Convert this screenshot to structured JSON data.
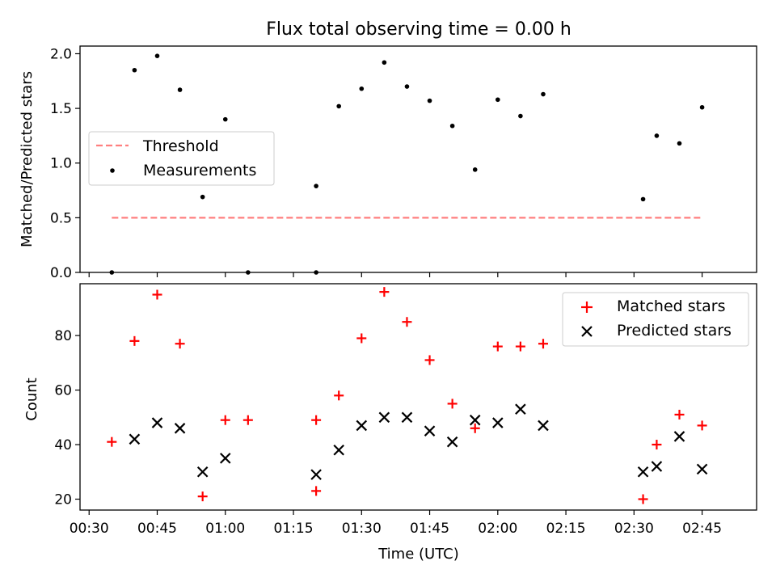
{
  "title": "Flux total observing time = 0.00 h",
  "colors": {
    "threshold": "#ff7f7f",
    "measurement": "#000000",
    "matched": "#ff0000",
    "predicted": "#000000"
  },
  "chart_data": [
    {
      "type": "scatter",
      "ylabel": "Matched/Predicted stars",
      "ylim": [
        0,
        2.07
      ],
      "yticks": [
        "0.0",
        "0.5",
        "1.0",
        "1.5",
        "2.0"
      ],
      "legend_position": "center-left",
      "threshold": {
        "name": "Threshold",
        "value": 0.5,
        "x_range": [
          "00:35",
          "02:45"
        ]
      },
      "series": [
        {
          "name": "Measurements",
          "points": [
            [
              "00:35",
              0.0
            ],
            [
              "00:40",
              1.85
            ],
            [
              "00:45",
              1.98
            ],
            [
              "00:50",
              1.67
            ],
            [
              "00:55",
              0.69
            ],
            [
              "01:00",
              1.4
            ],
            [
              "01:05",
              0.0
            ],
            [
              "01:20",
              0.0
            ],
            [
              "01:20",
              0.79
            ],
            [
              "01:25",
              1.52
            ],
            [
              "01:30",
              1.68
            ],
            [
              "01:35",
              1.92
            ],
            [
              "01:40",
              1.7
            ],
            [
              "01:45",
              1.57
            ],
            [
              "01:50",
              1.34
            ],
            [
              "01:55",
              0.94
            ],
            [
              "02:00",
              1.58
            ],
            [
              "02:05",
              1.43
            ],
            [
              "02:10",
              1.63
            ],
            [
              "02:32",
              0.67
            ],
            [
              "02:35",
              1.25
            ],
            [
              "02:40",
              1.18
            ],
            [
              "02:45",
              1.51
            ]
          ]
        }
      ]
    },
    {
      "type": "scatter",
      "xlabel": "Time (UTC)",
      "ylabel": "Count",
      "ylim": [
        16,
        99
      ],
      "yticks": [
        "20",
        "40",
        "60",
        "80"
      ],
      "xlim": [
        "00:28",
        "02:57"
      ],
      "xticks": [
        "00:30",
        "00:45",
        "01:00",
        "01:15",
        "01:30",
        "01:45",
        "02:00",
        "02:15",
        "02:30",
        "02:45"
      ],
      "legend_position": "top-right",
      "series": [
        {
          "name": "Matched stars",
          "marker": "+",
          "points": [
            [
              "00:35",
              41
            ],
            [
              "00:40",
              78
            ],
            [
              "00:45",
              95
            ],
            [
              "00:50",
              77
            ],
            [
              "00:55",
              21
            ],
            [
              "01:00",
              49
            ],
            [
              "01:05",
              49
            ],
            [
              "01:20",
              49
            ],
            [
              "01:20",
              23
            ],
            [
              "01:25",
              58
            ],
            [
              "01:30",
              79
            ],
            [
              "01:35",
              96
            ],
            [
              "01:40",
              85
            ],
            [
              "01:45",
              71
            ],
            [
              "01:50",
              55
            ],
            [
              "01:55",
              46
            ],
            [
              "02:00",
              76
            ],
            [
              "02:05",
              76
            ],
            [
              "02:10",
              77
            ],
            [
              "02:32",
              20
            ],
            [
              "02:35",
              40
            ],
            [
              "02:40",
              51
            ],
            [
              "02:45",
              47
            ]
          ]
        },
        {
          "name": "Predicted stars",
          "marker": "x",
          "points": [
            [
              "00:40",
              42
            ],
            [
              "00:45",
              48
            ],
            [
              "00:50",
              46
            ],
            [
              "00:55",
              30
            ],
            [
              "01:00",
              35
            ],
            [
              "01:20",
              29
            ],
            [
              "01:25",
              38
            ],
            [
              "01:30",
              47
            ],
            [
              "01:35",
              50
            ],
            [
              "01:40",
              50
            ],
            [
              "01:45",
              45
            ],
            [
              "01:50",
              41
            ],
            [
              "01:55",
              49
            ],
            [
              "02:00",
              48
            ],
            [
              "02:05",
              53
            ],
            [
              "02:10",
              47
            ],
            [
              "02:32",
              30
            ],
            [
              "02:35",
              32
            ],
            [
              "02:40",
              43
            ],
            [
              "02:45",
              31
            ]
          ]
        }
      ]
    }
  ]
}
